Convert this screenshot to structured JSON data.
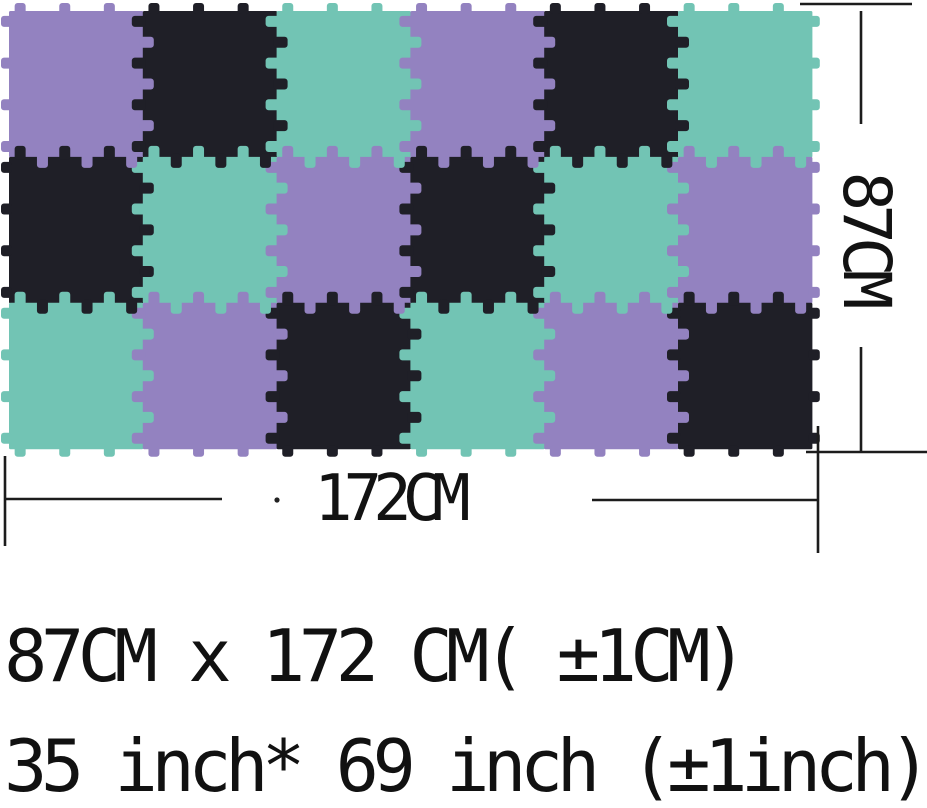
{
  "product_diagram": {
    "mat": {
      "rows": 3,
      "cols": 6,
      "grid": [
        [
          "purple",
          "black",
          "teal",
          "purple",
          "black",
          "teal"
        ],
        [
          "black",
          "teal",
          "purple",
          "black",
          "teal",
          "purple"
        ],
        [
          "teal",
          "purple",
          "black",
          "teal",
          "purple",
          "black"
        ]
      ],
      "colors": {
        "purple": "#9382c0",
        "black": "#1f1f27",
        "teal": "#72c4b4"
      }
    },
    "dimensions": {
      "height_label": "87CM",
      "width_label": "172CM",
      "line_color": "#1c1c1c"
    },
    "caption": {
      "line1": "87CM x 172 CM( ±1CM)",
      "line2": "35 inch* 69 inch (±1inch)"
    }
  }
}
